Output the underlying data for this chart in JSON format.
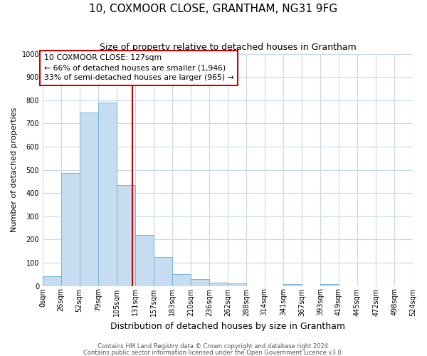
{
  "title": "10, COXMOOR CLOSE, GRANTHAM, NG31 9FG",
  "subtitle": "Size of property relative to detached houses in Grantham",
  "xlabel": "Distribution of detached houses by size in Grantham",
  "ylabel": "Number of detached properties",
  "bin_edges": [
    0,
    26,
    52,
    79,
    105,
    131,
    157,
    183,
    210,
    236,
    262,
    288,
    314,
    341,
    367,
    393,
    419,
    445,
    472,
    498,
    524
  ],
  "bin_labels": [
    "0sqm",
    "26sqm",
    "52sqm",
    "79sqm",
    "105sqm",
    "131sqm",
    "157sqm",
    "183sqm",
    "210sqm",
    "236sqm",
    "262sqm",
    "288sqm",
    "314sqm",
    "341sqm",
    "367sqm",
    "393sqm",
    "419sqm",
    "445sqm",
    "472sqm",
    "498sqm",
    "524sqm"
  ],
  "counts": [
    42,
    485,
    748,
    790,
    435,
    220,
    125,
    52,
    28,
    13,
    10,
    0,
    0,
    8,
    0,
    8,
    0,
    0,
    0,
    0
  ],
  "bar_facecolor": "#c6dcf0",
  "bar_edgecolor": "#7ab4d8",
  "grid_color": "#c8d8ee",
  "background_color": "#ffffff",
  "vline_x": 127,
  "vline_color": "#cc0000",
  "annotation_line1": "10 COXMOOR CLOSE: 127sqm",
  "annotation_line2": "← 66% of detached houses are smaller (1,946)",
  "annotation_line3": "33% of semi-detached houses are larger (965) →",
  "annotation_box_edgecolor": "#cc0000",
  "annotation_box_facecolor": "#ffffff",
  "ylim": [
    0,
    1000
  ],
  "yticks": [
    0,
    100,
    200,
    300,
    400,
    500,
    600,
    700,
    800,
    900,
    1000
  ],
  "footer1": "Contains HM Land Registry data © Crown copyright and database right 2024.",
  "footer2": "Contains public sector information licensed under the Open Government Licence v3.0.",
  "title_fontsize": 11,
  "subtitle_fontsize": 9,
  "ylabel_fontsize": 8,
  "xlabel_fontsize": 9,
  "tick_fontsize": 7,
  "footer_fontsize": 6
}
